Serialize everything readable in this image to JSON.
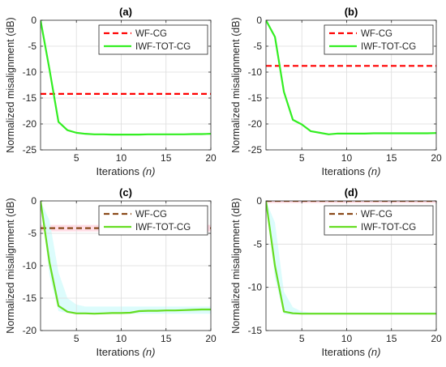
{
  "chart_data": [
    {
      "panel": "(a)",
      "type": "line",
      "title": "(a)",
      "xlabel": "Iterations",
      "xlabel_var": "(n)",
      "ylabel": "Normalized misalignment (dB)",
      "xlim": [
        1,
        20
      ],
      "ylim": [
        -25,
        0
      ],
      "xticks": [
        5,
        10,
        15,
        20
      ],
      "yticks": [
        0,
        -5,
        -10,
        -15,
        -20,
        -25
      ],
      "grid": true,
      "legend_position": "top-right",
      "series": [
        {
          "name": "WF-CG",
          "style": "dashed",
          "color": "#ff0000",
          "x": [
            1,
            20
          ],
          "y": [
            -14.2,
            -14.2
          ]
        },
        {
          "name": "IWF-TOT-CG",
          "style": "solid",
          "color": "#33ee22",
          "x": [
            1,
            2,
            3,
            4,
            5,
            6,
            7,
            8,
            9,
            10,
            11,
            12,
            13,
            14,
            15,
            16,
            17,
            18,
            19,
            20
          ],
          "y": [
            0,
            -9.5,
            -19.6,
            -21.2,
            -21.7,
            -21.9,
            -22.0,
            -22.0,
            -22.05,
            -22.05,
            -22.05,
            -22.05,
            -22.0,
            -22.0,
            -22.0,
            -22.0,
            -22.0,
            -21.95,
            -21.95,
            -21.9
          ]
        }
      ]
    },
    {
      "panel": "(b)",
      "type": "line",
      "title": "(b)",
      "xlabel": "Iterations",
      "xlabel_var": "(n)",
      "ylabel": "Normalized misalignment (dB)",
      "xlim": [
        1,
        20
      ],
      "ylim": [
        -25,
        0
      ],
      "xticks": [
        5,
        10,
        15,
        20
      ],
      "yticks": [
        0,
        -5,
        -10,
        -15,
        -20,
        -25
      ],
      "grid": true,
      "legend_position": "top-right",
      "series": [
        {
          "name": "WF-CG",
          "style": "dashed",
          "color": "#ff0000",
          "x": [
            1,
            20
          ],
          "y": [
            -8.8,
            -8.8
          ]
        },
        {
          "name": "IWF-TOT-CG",
          "style": "solid",
          "color": "#33ee22",
          "x": [
            1,
            2,
            3,
            4,
            5,
            6,
            7,
            8,
            9,
            10,
            11,
            12,
            13,
            14,
            15,
            16,
            17,
            18,
            19,
            20
          ],
          "y": [
            0,
            -3.2,
            -13.8,
            -19.2,
            -20.1,
            -21.4,
            -21.7,
            -22.0,
            -21.85,
            -21.85,
            -21.85,
            -21.85,
            -21.8,
            -21.8,
            -21.8,
            -21.8,
            -21.8,
            -21.8,
            -21.8,
            -21.75
          ]
        }
      ]
    },
    {
      "panel": "(c)",
      "type": "line",
      "title": "(c)",
      "xlabel": "Iterations",
      "xlabel_var": "(n)",
      "ylabel": "Normalized misalignment (dB)",
      "xlim": [
        1,
        20
      ],
      "ylim": [
        -20,
        0
      ],
      "xticks": [
        5,
        10,
        15,
        20
      ],
      "yticks": [
        0,
        -5,
        -10,
        -15,
        -20
      ],
      "grid": true,
      "legend_position": "top-right",
      "series": [
        {
          "name": "WF-CG",
          "style": "dashed",
          "color": "#8b4a1a",
          "x": [
            1,
            20
          ],
          "y": [
            -4.2,
            -4.2
          ],
          "band_color": "#ffd6e0",
          "band_lower": -4.7,
          "band_upper": -3.7
        },
        {
          "name": "IWF-TOT-CG",
          "style": "solid",
          "color": "#66dd22",
          "band_color": "#d6fbfb",
          "x": [
            1,
            2,
            3,
            4,
            5,
            6,
            7,
            8,
            9,
            10,
            11,
            12,
            13,
            14,
            15,
            16,
            17,
            18,
            19,
            20
          ],
          "y": [
            0,
            -9.5,
            -16.2,
            -17.1,
            -17.35,
            -17.35,
            -17.4,
            -17.35,
            -17.3,
            -17.3,
            -17.25,
            -17.0,
            -16.95,
            -16.95,
            -16.9,
            -16.9,
            -16.85,
            -16.8,
            -16.75,
            -16.75
          ],
          "band_lower": [
            0,
            -11.5,
            -17.0,
            -17.3,
            -17.4,
            -17.4,
            -17.4,
            -17.4,
            -17.4,
            -17.4,
            -17.4,
            -17.4,
            -17.4,
            -17.4,
            -17.4,
            -17.4,
            -17.4,
            -17.4,
            -17.4,
            -17.4
          ],
          "band_upper": [
            0,
            -3.0,
            -11.0,
            -15.0,
            -16.0,
            -16.3,
            -16.3,
            -16.3,
            -16.3,
            -16.3,
            -16.3,
            -16.3,
            -16.3,
            -16.3,
            -16.3,
            -16.3,
            -16.3,
            -16.3,
            -16.3,
            -16.3
          ]
        }
      ]
    },
    {
      "panel": "(d)",
      "type": "line",
      "title": "(d)",
      "xlabel": "Iterations",
      "xlabel_var": "(n)",
      "ylabel": "Normalized misalignment (dB)",
      "xlim": [
        1,
        20
      ],
      "ylim": [
        -15,
        0
      ],
      "xticks": [
        5,
        10,
        15,
        20
      ],
      "yticks": [
        0,
        -5,
        -10,
        -15
      ],
      "grid": true,
      "legend_position": "top-right",
      "series": [
        {
          "name": "WF-CG",
          "style": "dashed",
          "color": "#8b4a1a",
          "x": [
            1,
            20
          ],
          "y": [
            0.0,
            0.0
          ],
          "band_color": "#ffd6e0",
          "band_lower": -0.25,
          "band_upper": 0.25
        },
        {
          "name": "IWF-TOT-CG",
          "style": "solid",
          "color": "#66dd22",
          "band_color": "#d6fbfb",
          "x": [
            1,
            2,
            3,
            4,
            5,
            6,
            7,
            8,
            9,
            10,
            11,
            12,
            13,
            14,
            15,
            16,
            17,
            18,
            19,
            20
          ],
          "y": [
            0,
            -7.5,
            -12.8,
            -13.0,
            -13.05,
            -13.05,
            -13.05,
            -13.05,
            -13.05,
            -13.05,
            -13.05,
            -13.05,
            -13.05,
            -13.05,
            -13.05,
            -13.05,
            -13.05,
            -13.05,
            -13.05,
            -13.05
          ],
          "band_lower": [
            0,
            -9.0,
            -13.1,
            -13.15,
            -13.15,
            -13.15,
            -13.15,
            -13.15,
            -13.15,
            -13.15,
            -13.15,
            -13.15,
            -13.15,
            -13.15,
            -13.15,
            -13.15,
            -13.15,
            -13.15,
            -13.15,
            -13.15
          ],
          "band_upper": [
            0,
            -2.5,
            -10.5,
            -12.3,
            -12.8,
            -12.9,
            -12.9,
            -12.9,
            -12.9,
            -12.9,
            -12.9,
            -12.9,
            -12.9,
            -12.9,
            -12.9,
            -12.9,
            -12.9,
            -12.9,
            -12.9,
            -12.9
          ]
        }
      ]
    }
  ]
}
